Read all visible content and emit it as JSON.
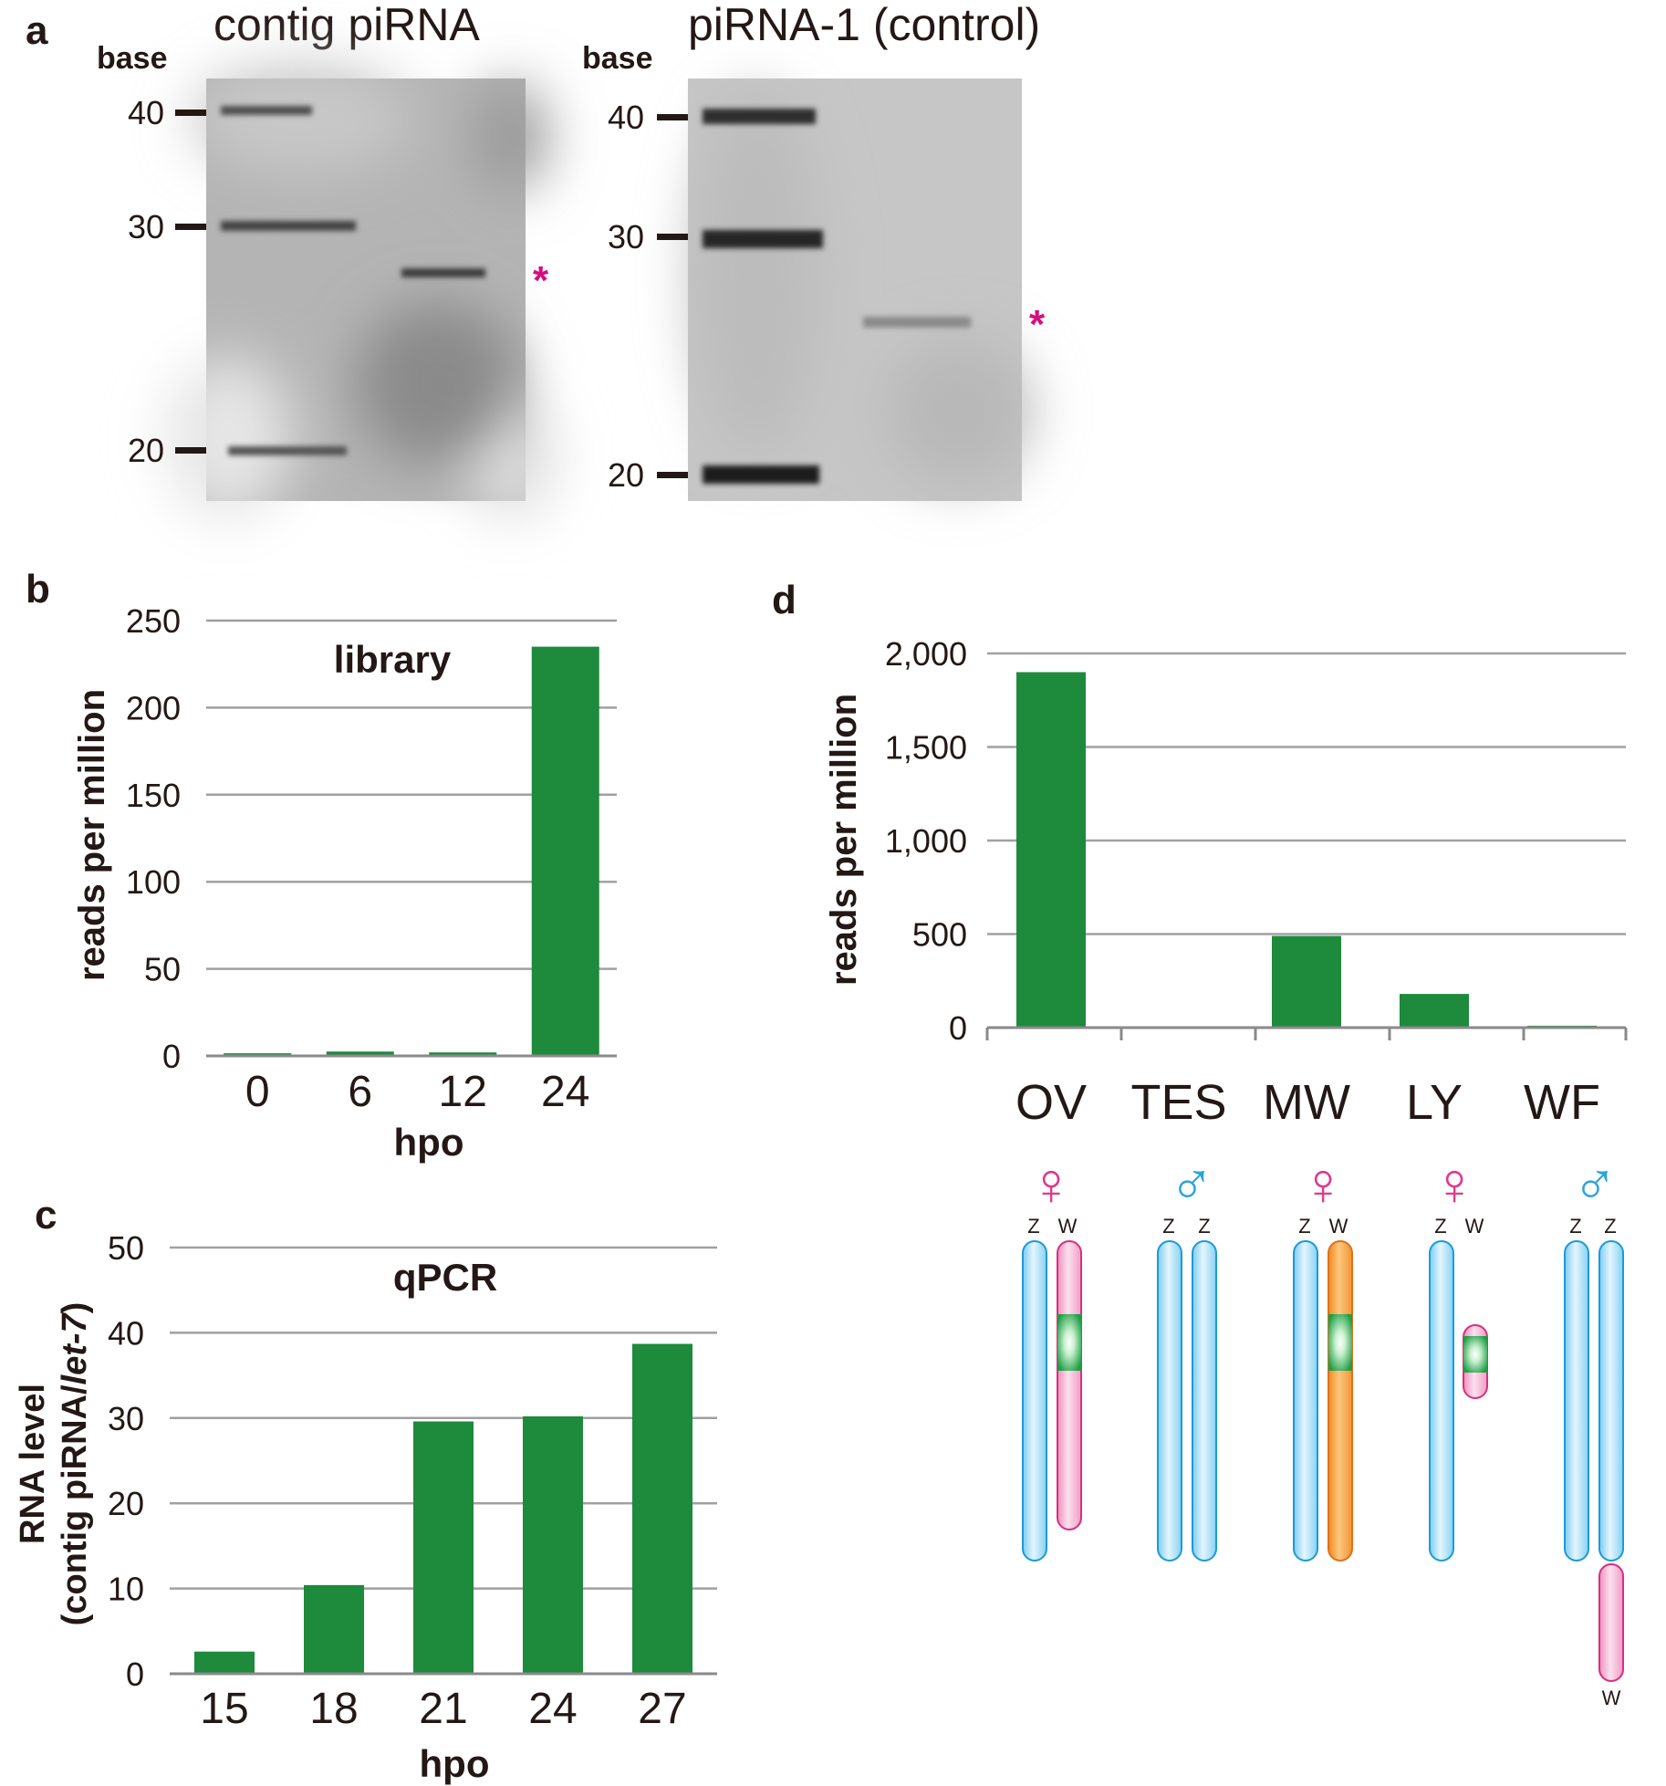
{
  "panels": {
    "a": "a",
    "b": "b",
    "c": "c",
    "d": "d"
  },
  "blots": [
    {
      "title": "contig piRNA",
      "size_label": "base",
      "markers": [
        {
          "label": "40",
          "value": 40
        },
        {
          "label": "30",
          "value": 30
        },
        {
          "label": "20",
          "value": 20
        }
      ],
      "band_mark": "*",
      "band_size": 27
    },
    {
      "title": "piRNA-1 (control)",
      "size_label": "base",
      "markers": [
        {
          "label": "40",
          "value": 40
        },
        {
          "label": "30",
          "value": 30
        },
        {
          "label": "20",
          "value": 20
        }
      ],
      "band_mark": "*",
      "band_size": 26
    }
  ],
  "chart_data": [
    {
      "id": "b",
      "type": "bar",
      "title": "library",
      "categories": [
        "0",
        "6",
        "12",
        "24"
      ],
      "values": [
        1.5,
        2.5,
        2,
        235
      ],
      "xlabel": "hpo",
      "ylabel": "reads per million",
      "ylim": [
        0,
        250
      ],
      "yticks": [
        0,
        50,
        100,
        150,
        200,
        250
      ],
      "ytick_labels": [
        "0",
        "50",
        "100",
        "150",
        "200",
        "250"
      ],
      "grid": true,
      "bar_color": "#1d8a3c"
    },
    {
      "id": "c",
      "type": "bar",
      "title": "qPCR",
      "categories": [
        "15",
        "18",
        "21",
        "24",
        "27"
      ],
      "values": [
        2.6,
        10.4,
        29.6,
        30.2,
        38.7
      ],
      "xlabel": "hpo",
      "ylabel_line1": "RNA level",
      "ylabel_line2_prefix": "(contig piRNA/",
      "ylabel_line2_italic": "let-7",
      "ylabel_line2_suffix": ")",
      "ylim": [
        0,
        50
      ],
      "yticks": [
        0,
        10,
        20,
        30,
        40,
        50
      ],
      "ytick_labels": [
        "0",
        "10",
        "20",
        "30",
        "40",
        "50"
      ],
      "grid": true,
      "bar_color": "#1d8a3c"
    },
    {
      "id": "d",
      "type": "bar",
      "title": "",
      "categories": [
        "OV",
        "TES",
        "MW",
        "LY",
        "WF"
      ],
      "values": [
        1900,
        0,
        490,
        180,
        10
      ],
      "xlabel": "",
      "ylabel": "reads per million",
      "ylim": [
        0,
        2000
      ],
      "yticks": [
        0,
        500,
        1000,
        1500,
        2000
      ],
      "ytick_labels": [
        "0",
        "500",
        "1,000",
        "1,500",
        "2,000"
      ],
      "grid": true,
      "bar_color": "#1d8a3c"
    }
  ],
  "karyotypes": [
    {
      "tissue": "OV",
      "sex_symbol": "♀",
      "sex": "female",
      "labels": [
        "Z",
        "W"
      ],
      "extra_label": ""
    },
    {
      "tissue": "TES",
      "sex_symbol": "♂",
      "sex": "male",
      "labels": [
        "Z",
        "Z"
      ],
      "extra_label": ""
    },
    {
      "tissue": "MW",
      "sex_symbol": "♀",
      "sex": "female",
      "labels": [
        "Z",
        "W"
      ],
      "extra_label": ""
    },
    {
      "tissue": "LY",
      "sex_symbol": "♀",
      "sex": "female",
      "labels": [
        "Z",
        "W"
      ],
      "extra_label": ""
    },
    {
      "tissue": "WF",
      "sex_symbol": "♂",
      "sex": "male",
      "labels": [
        "Z",
        "Z"
      ],
      "extra_label": "W"
    }
  ],
  "colors": {
    "bar": "#1d8a3c",
    "grid": "#a0a0a0",
    "female": "#e0398d",
    "male": "#2aa4dc",
    "asterisk": "#d4107e",
    "z_chrom": "#bfe6fa",
    "w_chrom": "#f4b3d1",
    "w_mw": "#f7a23d",
    "green_band": "#22a648"
  }
}
